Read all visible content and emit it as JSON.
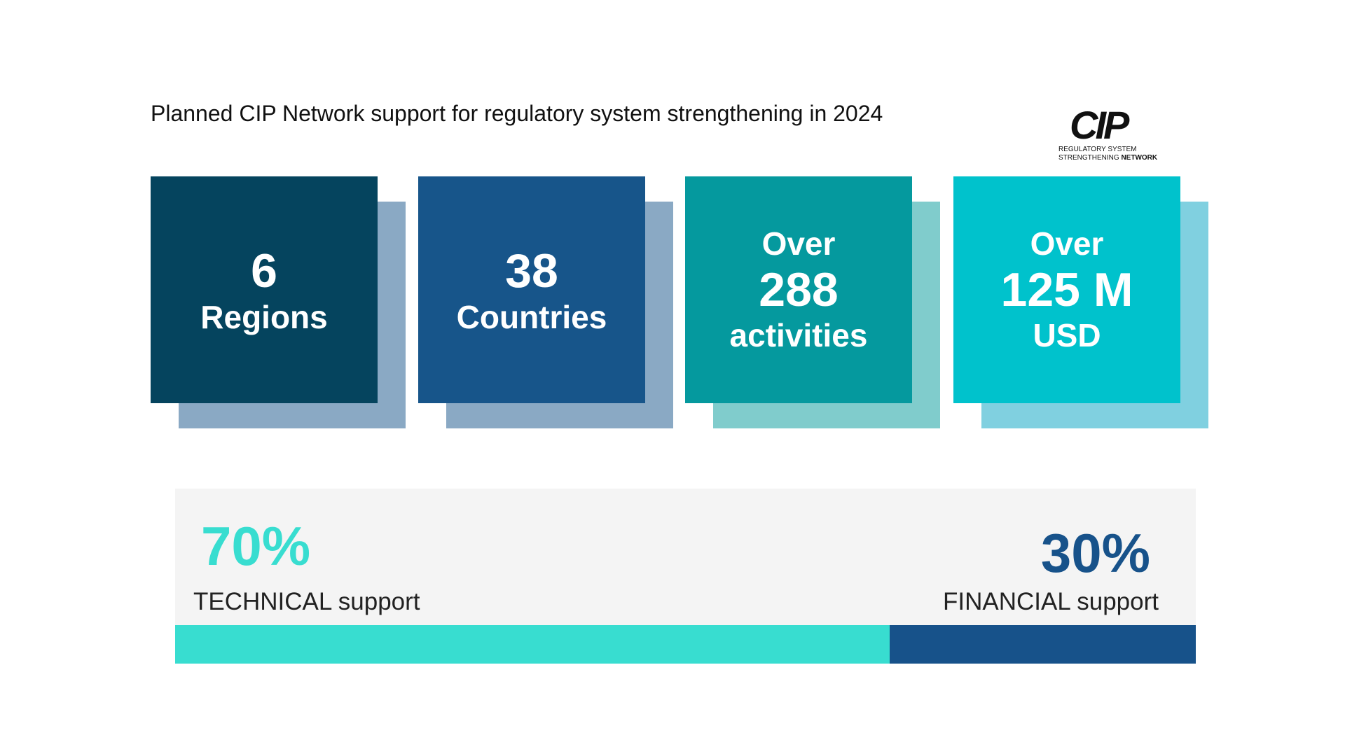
{
  "header": {
    "title": "Planned CIP Network support for regulatory system strengthening in 2024"
  },
  "logo": {
    "mark": "CIP",
    "line1": "REGULATORY SYSTEM",
    "line2a": "STRENGTHENING",
    "line2b": "NETWORK"
  },
  "cards": [
    {
      "number": "6",
      "unit": "Regions",
      "color": "#05445e",
      "shadow": "#8aa9c4"
    },
    {
      "number": "38",
      "unit": "Countries",
      "color": "#17558a",
      "shadow": "#8aa9c4"
    },
    {
      "prefix": "Over",
      "number": "288",
      "unit": "activities",
      "color": "#05999e",
      "shadow": "#80cccc"
    },
    {
      "prefix": "Over",
      "number": "125 M",
      "unit": "USD",
      "color": "#00c2cc",
      "shadow": "#80d0e0"
    }
  ],
  "split": {
    "segments": [
      {
        "value": 70,
        "label": "70%",
        "caption": "TECHNICAL support",
        "color": "#38ddd0"
      },
      {
        "value": 30,
        "label": "30%",
        "caption": "FINANCIAL support",
        "color": "#17528a"
      }
    ]
  }
}
